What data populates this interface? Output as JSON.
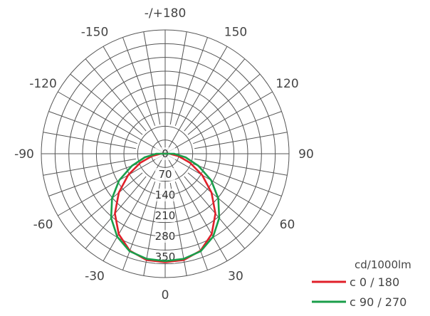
{
  "chart_data": {
    "type": "polar",
    "unit": "cd/1000lm",
    "angle_labels": [
      {
        "deg": 180,
        "text": "-/+180"
      },
      {
        "deg": -150,
        "text": "-150"
      },
      {
        "deg": 150,
        "text": "150"
      },
      {
        "deg": -120,
        "text": "-120"
      },
      {
        "deg": 120,
        "text": "120"
      },
      {
        "deg": -90,
        "text": "-90"
      },
      {
        "deg": 90,
        "text": "90"
      },
      {
        "deg": -60,
        "text": "-60"
      },
      {
        "deg": 60,
        "text": "60"
      },
      {
        "deg": -30,
        "text": "-30"
      },
      {
        "deg": 30,
        "text": "30"
      },
      {
        "deg": 0,
        "text": "0"
      }
    ],
    "ring_values": [
      0,
      70,
      140,
      210,
      280,
      350
    ],
    "r_max": 420,
    "series": [
      {
        "name": "c 0 / 180",
        "color": "#e0202a",
        "points": [
          [
            -90,
            15
          ],
          [
            -80,
            45
          ],
          [
            -70,
            90
          ],
          [
            -60,
            145
          ],
          [
            -50,
            205
          ],
          [
            -40,
            265
          ],
          [
            -30,
            315
          ],
          [
            -20,
            350
          ],
          [
            -10,
            366
          ],
          [
            0,
            368
          ],
          [
            10,
            366
          ],
          [
            20,
            350
          ],
          [
            30,
            315
          ],
          [
            40,
            265
          ],
          [
            50,
            205
          ],
          [
            60,
            145
          ],
          [
            70,
            90
          ],
          [
            80,
            45
          ],
          [
            90,
            15
          ]
        ]
      },
      {
        "name": "c 90 / 270",
        "color": "#1a9e4a",
        "points": [
          [
            -90,
            30
          ],
          [
            -80,
            70
          ],
          [
            -70,
            120
          ],
          [
            -60,
            180
          ],
          [
            -50,
            235
          ],
          [
            -40,
            285
          ],
          [
            -30,
            325
          ],
          [
            -20,
            352
          ],
          [
            -10,
            362
          ],
          [
            0,
            364
          ],
          [
            10,
            362
          ],
          [
            20,
            352
          ],
          [
            30,
            325
          ],
          [
            40,
            285
          ],
          [
            50,
            235
          ],
          [
            60,
            180
          ],
          [
            70,
            120
          ],
          [
            80,
            70
          ],
          [
            90,
            30
          ]
        ]
      }
    ]
  }
}
